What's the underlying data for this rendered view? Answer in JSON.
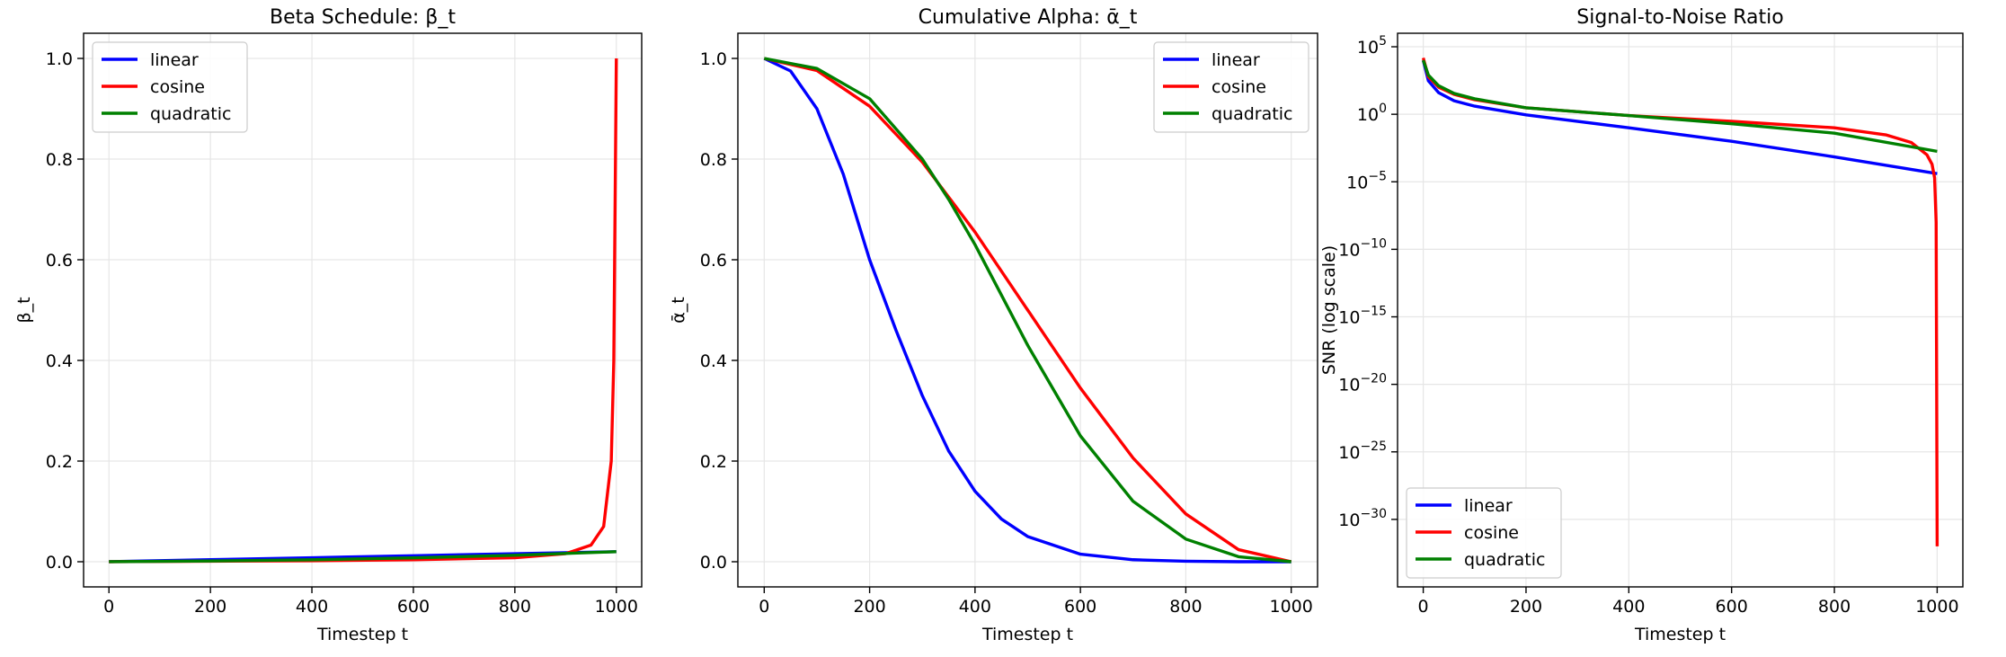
{
  "chart_data": [
    {
      "type": "line",
      "title": "Beta Schedule: β_t",
      "xlabel": "Timestep t",
      "ylabel": "β_t",
      "xlim": [
        -50,
        1050
      ],
      "ylim": [
        -0.05,
        1.05
      ],
      "xticks": [
        0,
        200,
        400,
        600,
        800,
        1000
      ],
      "xtick_labels": [
        "0",
        "200",
        "400",
        "600",
        "800",
        "1000"
      ],
      "yticks": [
        0.0,
        0.2,
        0.4,
        0.6,
        0.8,
        1.0
      ],
      "ytick_labels": [
        "0.0",
        "0.2",
        "0.4",
        "0.6",
        "0.8",
        "1.0"
      ],
      "yscale": "linear",
      "grid": true,
      "legend_position": "upper-left",
      "series": [
        {
          "name": "linear",
          "color": "#0000ff",
          "x": [
            0,
            200,
            400,
            600,
            800,
            1000
          ],
          "y": [
            0.0001,
            0.004,
            0.008,
            0.012,
            0.016,
            0.02
          ]
        },
        {
          "name": "cosine",
          "color": "#ff0000",
          "x": [
            0,
            200,
            400,
            600,
            800,
            900,
            950,
            975,
            990,
            995,
            1000
          ],
          "y": [
            0.0,
            0.001,
            0.002,
            0.004,
            0.008,
            0.016,
            0.033,
            0.07,
            0.2,
            0.4,
            1.0
          ]
        },
        {
          "name": "quadratic",
          "color": "#008000",
          "x": [
            0,
            200,
            400,
            600,
            800,
            1000
          ],
          "y": [
            0.0001,
            0.0014,
            0.0039,
            0.0077,
            0.0129,
            0.02
          ]
        }
      ]
    },
    {
      "type": "line",
      "title": "Cumulative Alpha: ᾱ_t",
      "xlabel": "Timestep t",
      "ylabel": "ᾱ_t",
      "xlim": [
        -50,
        1050
      ],
      "ylim": [
        -0.05,
        1.05
      ],
      "xticks": [
        0,
        200,
        400,
        600,
        800,
        1000
      ],
      "xtick_labels": [
        "0",
        "200",
        "400",
        "600",
        "800",
        "1000"
      ],
      "yticks": [
        0.0,
        0.2,
        0.4,
        0.6,
        0.8,
        1.0
      ],
      "ytick_labels": [
        "0.0",
        "0.2",
        "0.4",
        "0.6",
        "0.8",
        "1.0"
      ],
      "yscale": "linear",
      "grid": true,
      "legend_position": "upper-right",
      "series": [
        {
          "name": "linear",
          "color": "#0000ff",
          "x": [
            0,
            50,
            100,
            150,
            200,
            250,
            300,
            350,
            400,
            450,
            500,
            600,
            700,
            800,
            900,
            1000
          ],
          "y": [
            1.0,
            0.975,
            0.9,
            0.77,
            0.6,
            0.46,
            0.33,
            0.22,
            0.14,
            0.085,
            0.05,
            0.015,
            0.004,
            0.001,
            0.0,
            0.0
          ]
        },
        {
          "name": "cosine",
          "color": "#ff0000",
          "x": [
            0,
            100,
            200,
            300,
            400,
            500,
            600,
            700,
            800,
            900,
            1000
          ],
          "y": [
            1.0,
            0.976,
            0.905,
            0.794,
            0.655,
            0.5,
            0.345,
            0.206,
            0.095,
            0.024,
            0.0
          ]
        },
        {
          "name": "quadratic",
          "color": "#008000",
          "x": [
            0,
            100,
            200,
            300,
            350,
            400,
            450,
            500,
            600,
            700,
            800,
            900,
            1000
          ],
          "y": [
            1.0,
            0.98,
            0.92,
            0.8,
            0.72,
            0.63,
            0.53,
            0.43,
            0.25,
            0.12,
            0.045,
            0.01,
            0.0
          ]
        }
      ]
    },
    {
      "type": "line",
      "title": "Signal-to-Noise Ratio",
      "xlabel": "Timestep t",
      "ylabel": "SNR (log scale)",
      "xlim": [
        -50,
        1050
      ],
      "ylim_log10": [
        -35,
        6
      ],
      "xticks": [
        0,
        200,
        400,
        600,
        800,
        1000
      ],
      "xtick_labels": [
        "0",
        "200",
        "400",
        "600",
        "800",
        "1000"
      ],
      "yticks_log10": [
        5,
        0,
        -5,
        -10,
        -15,
        -20,
        -25,
        -30
      ],
      "ytick_base": "10",
      "ytick_exponents": [
        "5",
        "0",
        "−5",
        "−10",
        "−15",
        "−20",
        "−25",
        "−30"
      ],
      "yscale": "log",
      "grid": true,
      "legend_position": "lower-left",
      "series": [
        {
          "name": "linear",
          "color": "#0000ff",
          "x": [
            0,
            10,
            30,
            60,
            100,
            200,
            400,
            600,
            800,
            1000
          ],
          "y": [
            10000,
            300,
            40,
            10,
            4,
            0.9,
            0.1,
            0.01,
            0.0007,
            4e-05
          ]
        },
        {
          "name": "cosine",
          "color": "#ff0000",
          "x": [
            0,
            10,
            30,
            60,
            100,
            200,
            400,
            600,
            800,
            900,
            950,
            980,
            990,
            995,
            998,
            1000
          ],
          "y": [
            15000,
            600,
            100,
            30,
            12,
            3,
            0.8,
            0.3,
            0.1,
            0.03,
            0.008,
            0.001,
            0.0002,
            2e-05,
            1e-08,
            1e-32
          ]
        },
        {
          "name": "quadratic",
          "color": "#008000",
          "x": [
            0,
            10,
            30,
            60,
            100,
            200,
            400,
            600,
            800,
            1000
          ],
          "y": [
            10000,
            800,
            130,
            35,
            14,
            3,
            0.8,
            0.2,
            0.04,
            0.0018
          ]
        }
      ]
    }
  ]
}
